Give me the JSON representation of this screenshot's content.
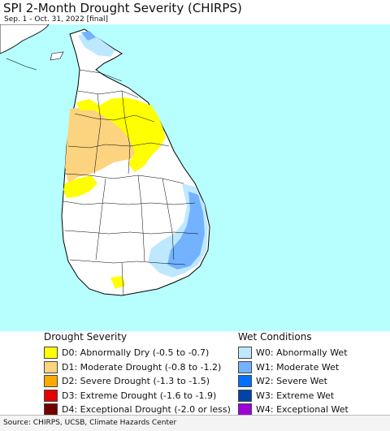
{
  "header": {
    "title": "SPI 2-Month Drought Severity (CHIRPS)",
    "subtitle": "Sep. 1 - Oct. 31, 2022 [final]"
  },
  "map": {
    "ocean_color": "#b7ffff",
    "land_color": "#ffffff",
    "border_color": "#000000"
  },
  "legend": {
    "drought": {
      "title": "Drought Severity",
      "items": [
        {
          "label": "D0: Abnormally Dry (-0.5 to -0.7)",
          "color": "#ffff00"
        },
        {
          "label": "D1: Moderate Drought (-0.8 to -1.2)",
          "color": "#fcd37f"
        },
        {
          "label": "D2: Severe Drought (-1.3 to -1.5)",
          "color": "#ffaa00"
        },
        {
          "label": "D3: Extreme Drought (-1.6 to -1.9)",
          "color": "#e60000"
        },
        {
          "label": "D4: Exceptional Drought (-2.0 or less)",
          "color": "#730000"
        }
      ]
    },
    "wet": {
      "title": "Wet Conditions",
      "items": [
        {
          "label": "W0: Abnormally Wet",
          "color": "#bee8ff"
        },
        {
          "label": "W1: Moderate Wet",
          "color": "#73b2ff"
        },
        {
          "label": "W2: Severe Wet",
          "color": "#0070ff"
        },
        {
          "label": "W3: Extreme Wet",
          "color": "#0045a6"
        },
        {
          "label": "W4: Exceptional Wet",
          "color": "#9e00d8"
        }
      ]
    }
  },
  "footer": {
    "source": "Source: CHIRPS, UCSB, Climate Hazards Center"
  }
}
